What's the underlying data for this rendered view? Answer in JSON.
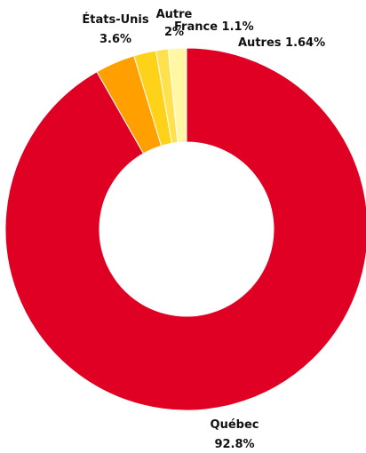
{
  "chart_data": {
    "type": "pie",
    "donut": true,
    "title": "",
    "legend": "none",
    "slices": [
      {
        "label": "Québec",
        "value_label": "92.8%",
        "value": 92.8,
        "color": "#df0024"
      },
      {
        "label": "États-Unis",
        "value_label": "3.6%",
        "value": 3.6,
        "color": "#ffa000"
      },
      {
        "label": "Autre",
        "value_label": "2%",
        "value": 2,
        "color": "#ffd21a"
      },
      {
        "label": "France",
        "value_label": "1.1%",
        "value": 1.1,
        "color": "#ffe14d"
      },
      {
        "label": "Autres",
        "value_label": "1.64%",
        "value": 1.64,
        "color": "#fff7a3"
      }
    ]
  }
}
